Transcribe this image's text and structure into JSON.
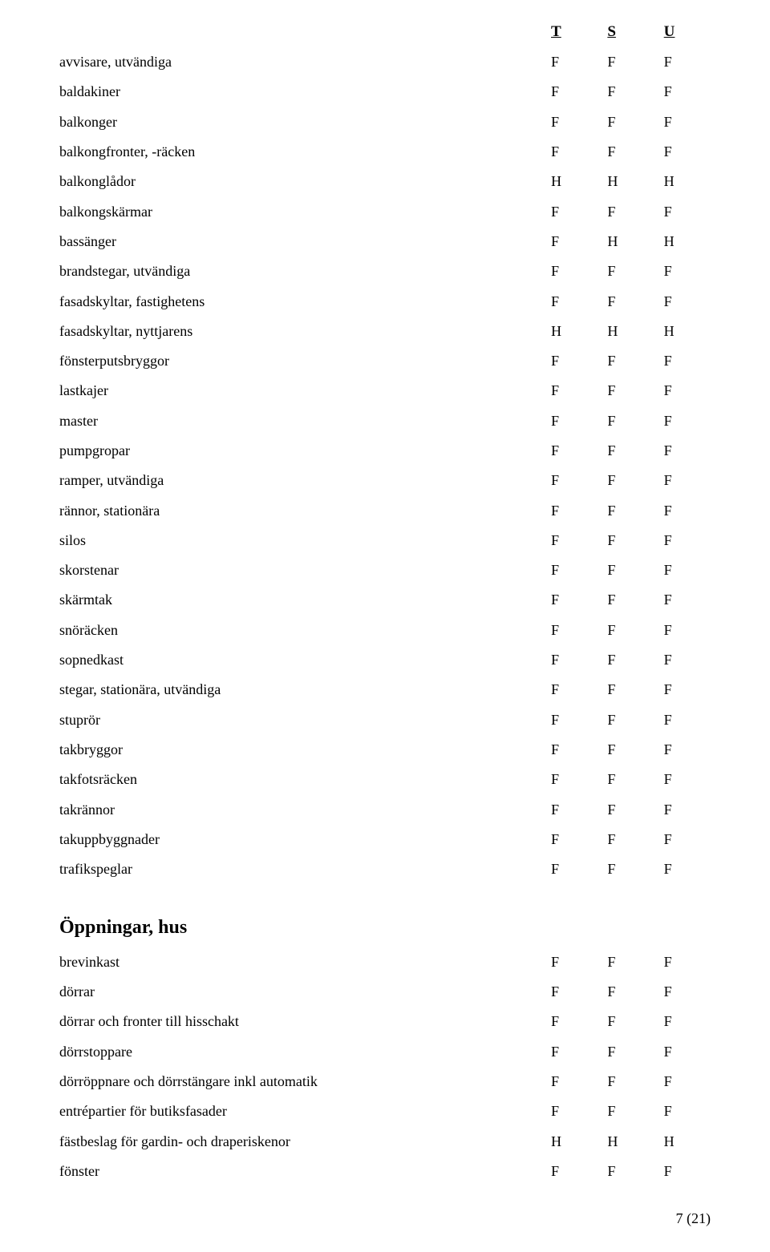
{
  "headers": {
    "t": "T",
    "s": "S",
    "u": "U"
  },
  "sections": [
    {
      "heading": null,
      "rows": [
        {
          "label": "avvisare, utvändiga",
          "t": "F",
          "s": "F",
          "u": "F"
        },
        {
          "label": "baldakiner",
          "t": "F",
          "s": "F",
          "u": "F"
        },
        {
          "label": "balkonger",
          "t": "F",
          "s": "F",
          "u": "F"
        },
        {
          "label": "balkongfronter, -räcken",
          "t": "F",
          "s": "F",
          "u": "F"
        },
        {
          "label": "balkonglådor",
          "t": "H",
          "s": "H",
          "u": "H"
        },
        {
          "label": "balkongskärmar",
          "t": "F",
          "s": "F",
          "u": "F"
        },
        {
          "label": "bassänger",
          "t": "F",
          "s": "H",
          "u": "H"
        },
        {
          "label": "brandstegar, utvändiga",
          "t": "F",
          "s": "F",
          "u": "F"
        },
        {
          "label": "fasadskyltar, fastighetens",
          "t": "F",
          "s": "F",
          "u": "F"
        },
        {
          "label": "fasadskyltar, nyttjarens",
          "t": "H",
          "s": "H",
          "u": "H"
        },
        {
          "label": "fönsterputsbryggor",
          "t": "F",
          "s": "F",
          "u": "F"
        },
        {
          "label": "lastkajer",
          "t": "F",
          "s": "F",
          "u": "F"
        },
        {
          "label": "master",
          "t": "F",
          "s": "F",
          "u": "F"
        },
        {
          "label": "pumpgropar",
          "t": "F",
          "s": "F",
          "u": "F"
        },
        {
          "label": "ramper, utvändiga",
          "t": "F",
          "s": "F",
          "u": "F"
        },
        {
          "label": "rännor, stationära",
          "t": "F",
          "s": "F",
          "u": "F"
        },
        {
          "label": "silos",
          "t": "F",
          "s": "F",
          "u": "F"
        },
        {
          "label": "skorstenar",
          "t": "F",
          "s": "F",
          "u": "F"
        },
        {
          "label": "skärmtak",
          "t": "F",
          "s": "F",
          "u": "F"
        },
        {
          "label": "snöräcken",
          "t": "F",
          "s": "F",
          "u": "F"
        },
        {
          "label": "sopnedkast",
          "t": "F",
          "s": "F",
          "u": "F"
        },
        {
          "label": "stegar, stationära, utvändiga",
          "t": "F",
          "s": "F",
          "u": "F"
        },
        {
          "label": "stuprör",
          "t": "F",
          "s": "F",
          "u": "F"
        },
        {
          "label": "takbryggor",
          "t": "F",
          "s": "F",
          "u": "F"
        },
        {
          "label": "takfotsräcken",
          "t": "F",
          "s": "F",
          "u": "F"
        },
        {
          "label": "takrännor",
          "t": "F",
          "s": "F",
          "u": "F"
        },
        {
          "label": "takuppbyggnader",
          "t": "F",
          "s": "F",
          "u": "F"
        },
        {
          "label": "trafikspeglar",
          "t": "F",
          "s": "F",
          "u": "F"
        }
      ]
    },
    {
      "heading": "Öppningar, hus",
      "rows": [
        {
          "label": "brevinkast",
          "t": "F",
          "s": "F",
          "u": "F"
        },
        {
          "label": "dörrar",
          "t": "F",
          "s": "F",
          "u": "F"
        },
        {
          "label": "dörrar och fronter till hisschakt",
          "t": "F",
          "s": "F",
          "u": "F"
        },
        {
          "label": "dörrstoppare",
          "t": "F",
          "s": "F",
          "u": "F"
        },
        {
          "label": "dörröppnare och dörrstängare inkl automatik",
          "t": "F",
          "s": "F",
          "u": "F"
        },
        {
          "label": "entrépartier för butiksfasader",
          "t": "F",
          "s": "F",
          "u": "F"
        },
        {
          "label": "fästbeslag för gardin- och draperiskenor",
          "t": "H",
          "s": "H",
          "u": "H"
        },
        {
          "label": "fönster",
          "t": "F",
          "s": "F",
          "u": "F"
        }
      ]
    }
  ],
  "page_number": "7 (21)"
}
